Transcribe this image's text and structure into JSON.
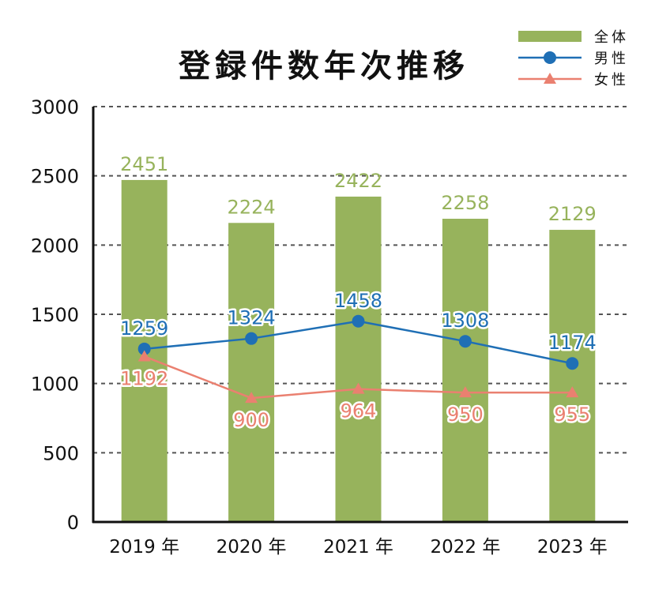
{
  "chart_data": {
    "type": "bar",
    "title": "登録件数年次推移",
    "categories": [
      "2019 年",
      "2020 年",
      "2021 年",
      "2022 年",
      "2023 年"
    ],
    "ylim": [
      0,
      3000
    ],
    "yticks": [
      0,
      500,
      1000,
      1500,
      2000,
      2500,
      3000
    ],
    "grid": true,
    "legend_position": "top-right",
    "series": [
      {
        "name": "全体",
        "kind": "bar",
        "color": "#97b35c",
        "values": [
          2451,
          2224,
          2422,
          2258,
          2129
        ],
        "bar_heights": [
          2470,
          2160,
          2350,
          2190,
          2110
        ]
      },
      {
        "name": "男性",
        "kind": "line",
        "marker": "circle",
        "color": "#1f6fb5",
        "values": [
          1259,
          1324,
          1458,
          1308,
          1174
        ],
        "positions": [
          1250,
          1325,
          1450,
          1305,
          1145
        ]
      },
      {
        "name": "女性",
        "kind": "line",
        "marker": "triangle",
        "color": "#ea8070",
        "values": [
          1192,
          900,
          964,
          950,
          955
        ],
        "positions": [
          1195,
          895,
          960,
          935,
          935
        ]
      }
    ]
  }
}
